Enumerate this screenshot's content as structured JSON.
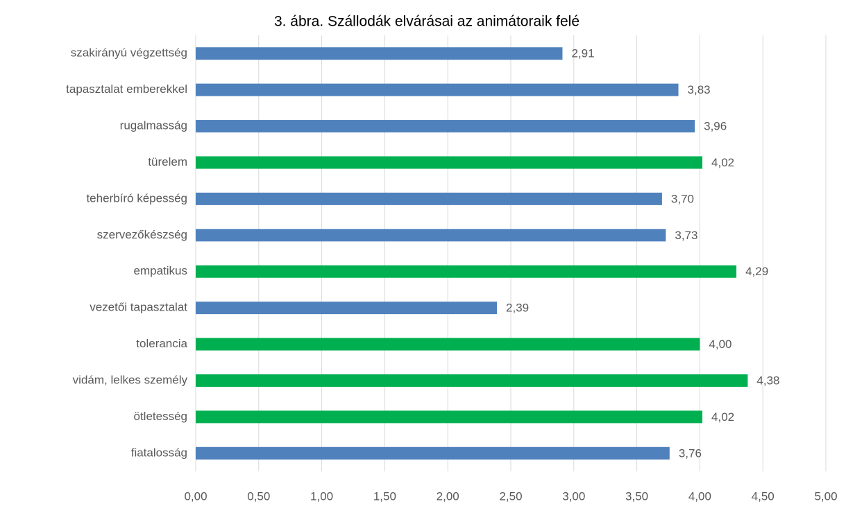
{
  "chart_data": {
    "type": "bar",
    "orientation": "horizontal",
    "title": "3. ábra. Szállodák elvárásai az animátoraik felé",
    "categories": [
      "szakirányú végzettség",
      "tapasztalat emberekkel",
      "rugalmasság",
      "türelem",
      "teherbíró képesség",
      "szervezőkészség",
      "empatikus",
      "vezetői tapasztalat",
      "tolerancia",
      "vidám, lelkes személy",
      "ötletesség",
      "fiatalosság"
    ],
    "values": [
      2.91,
      3.83,
      3.96,
      4.02,
      3.7,
      3.73,
      4.29,
      2.39,
      4.0,
      4.38,
      4.02,
      3.76
    ],
    "value_labels": [
      "2,91",
      "3,83",
      "3,96",
      "4,02",
      "3,70",
      "3,73",
      "4,29",
      "2,39",
      "4,00",
      "4,38",
      "4,02",
      "3,76"
    ],
    "colors": [
      "#4f81bd",
      "#4f81bd",
      "#4f81bd",
      "#00b050",
      "#4f81bd",
      "#4f81bd",
      "#00b050",
      "#4f81bd",
      "#00b050",
      "#00b050",
      "#00b050",
      "#4f81bd"
    ],
    "xlim": [
      0,
      5
    ],
    "xticks": [
      {
        "value": 0,
        "label": "0,00"
      },
      {
        "value": 0.5,
        "label": "0,50"
      },
      {
        "value": 1,
        "label": "1,00"
      },
      {
        "value": 1.5,
        "label": "1,50"
      },
      {
        "value": 2,
        "label": "2,00"
      },
      {
        "value": 2.5,
        "label": "2,50"
      },
      {
        "value": 3,
        "label": "3,00"
      },
      {
        "value": 3.5,
        "label": "3,50"
      },
      {
        "value": 4,
        "label": "4,00"
      },
      {
        "value": 4.5,
        "label": "4,50"
      },
      {
        "value": 5,
        "label": "5,00"
      }
    ],
    "grid": true
  }
}
